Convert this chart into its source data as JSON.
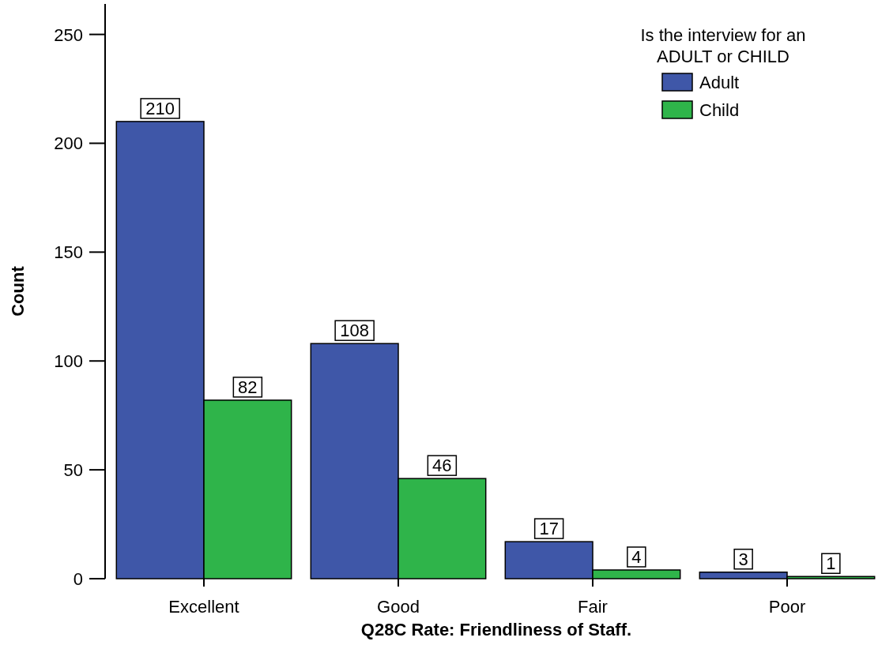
{
  "chart_data": {
    "type": "bar",
    "xlabel": "Q28C Rate: Friendliness of Staff.",
    "ylabel": "Count",
    "legend_title": "Is the interview for an\nADULT or CHILD",
    "categories": [
      "Excellent",
      "Good",
      "Fair",
      "Poor"
    ],
    "series": [
      {
        "name": "Adult",
        "color": "#3f57a8",
        "values": [
          210,
          108,
          17,
          3
        ]
      },
      {
        "name": "Child",
        "color": "#2fb44a",
        "values": [
          82,
          46,
          4,
          1
        ]
      }
    ],
    "ylim": [
      0,
      264
    ],
    "yticks": [
      0,
      50,
      100,
      150,
      200,
      250
    ],
    "grid": false,
    "legend": "top right",
    "data_labels": true
  }
}
